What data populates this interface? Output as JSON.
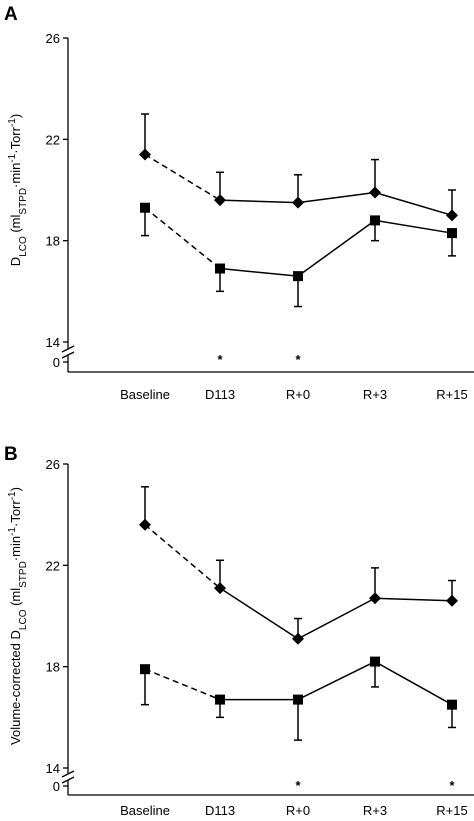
{
  "chart_data": [
    {
      "type": "line",
      "title": "A",
      "ylabel": [
        {
          "text": "D"
        },
        {
          "text": "LCO",
          "shift": "sub"
        },
        {
          "text": " (ml"
        },
        {
          "text": "STPD",
          "shift": "sub"
        },
        {
          "text": "·min"
        },
        {
          "text": "-1",
          "shift": "sup"
        },
        {
          "text": "·Torr"
        },
        {
          "text": "-1",
          "shift": "sup"
        },
        {
          "text": ")"
        }
      ],
      "categories": [
        "Baseline",
        "D113",
        "R+0",
        "R+3",
        "R+15"
      ],
      "ylim": [
        14,
        26
      ],
      "yticks": [
        0,
        14,
        18,
        22,
        26
      ],
      "axis_break": true,
      "significance": [
        null,
        "*",
        "*",
        null,
        null
      ],
      "series": [
        {
          "marker": "diamond",
          "color": "#000000",
          "values": [
            21.4,
            19.6,
            19.5,
            19.9,
            19.0
          ],
          "errors": [
            1.6,
            1.1,
            1.1,
            1.3,
            1.0
          ],
          "error_direction": "up",
          "line_style": [
            "dashed",
            "solid",
            "solid",
            "solid"
          ]
        },
        {
          "marker": "square",
          "color": "#000000",
          "values": [
            19.3,
            16.9,
            16.6,
            18.8,
            18.3
          ],
          "errors": [
            1.1,
            0.9,
            1.2,
            0.8,
            0.9
          ],
          "error_direction": "down",
          "line_style": [
            "dashed",
            "solid",
            "solid",
            "solid"
          ]
        }
      ]
    },
    {
      "type": "line",
      "title": "B",
      "ylabel": [
        {
          "text": "Volume-corrected D"
        },
        {
          "text": "LCO",
          "shift": "sub"
        },
        {
          "text": " (ml"
        },
        {
          "text": "STPD",
          "shift": "sub"
        },
        {
          "text": "·min"
        },
        {
          "text": "-1",
          "shift": "sup"
        },
        {
          "text": "·Torr"
        },
        {
          "text": "-1",
          "shift": "sup"
        },
        {
          "text": ")"
        }
      ],
      "categories": [
        "Baseline",
        "D113",
        "R+0",
        "R+3",
        "R+15"
      ],
      "ylim": [
        14,
        26
      ],
      "yticks": [
        0,
        14,
        18,
        22,
        26
      ],
      "axis_break": true,
      "significance": [
        null,
        null,
        "*",
        null,
        "*"
      ],
      "series": [
        {
          "marker": "diamond",
          "color": "#000000",
          "values": [
            23.6,
            21.1,
            19.1,
            20.7,
            20.6
          ],
          "errors": [
            1.5,
            1.1,
            0.8,
            1.2,
            0.8
          ],
          "error_direction": "up",
          "line_style": [
            "dashed",
            "solid",
            "solid",
            "solid"
          ]
        },
        {
          "marker": "square",
          "color": "#000000",
          "values": [
            17.9,
            16.7,
            16.7,
            18.2,
            16.5
          ],
          "errors": [
            1.4,
            0.7,
            1.6,
            1.0,
            0.9
          ],
          "error_direction": "down",
          "line_style": [
            "dashed",
            "solid",
            "solid",
            "solid"
          ]
        }
      ]
    }
  ]
}
